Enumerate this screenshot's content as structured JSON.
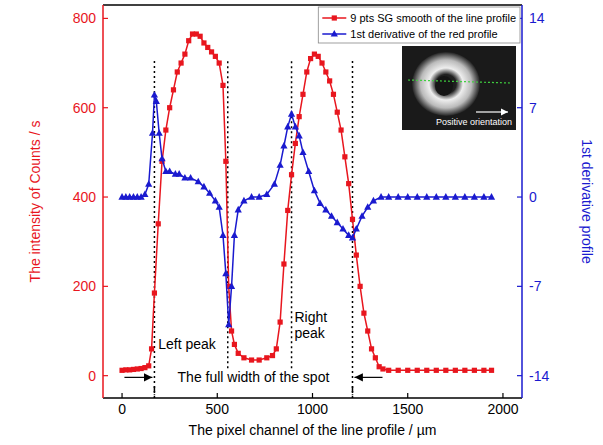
{
  "chart_data": {
    "type": "line",
    "xlabel": "The pixel channel of the line profile / µm",
    "ylabel": "The intensity of Counts / s",
    "y2label": "1st derivative profile",
    "xlim": [
      -100,
      2100
    ],
    "xticks": [
      0,
      500,
      1000,
      1500,
      2000
    ],
    "ylim": [
      -50,
      830
    ],
    "yticks": [
      0,
      200,
      400,
      600,
      800
    ],
    "y2lim": [
      -15.75,
      15.05
    ],
    "y2ticks": [
      -14,
      -7,
      0,
      7,
      14
    ],
    "legend": "top-right",
    "series": [
      {
        "name": "9 pts SG smooth of the line profile",
        "color": "#e8161e",
        "marker": "square",
        "line_style": "solid",
        "x": [
          0,
          20,
          40,
          60,
          80,
          100,
          120,
          140,
          155,
          170,
          190,
          210,
          230,
          250,
          270,
          290,
          310,
          330,
          350,
          370,
          390,
          410,
          430,
          450,
          470,
          490,
          510,
          530,
          545,
          560,
          575,
          590,
          610,
          640,
          680,
          720,
          760,
          790,
          810,
          830,
          850,
          870,
          890,
          910,
          930,
          950,
          970,
          990,
          1010,
          1030,
          1050,
          1070,
          1090,
          1110,
          1130,
          1150,
          1170,
          1190,
          1210,
          1230,
          1250,
          1270,
          1290,
          1310,
          1330,
          1350,
          1370,
          1400,
          1450,
          1500,
          1550,
          1600,
          1650,
          1700,
          1750,
          1800,
          1850,
          1900,
          1940
        ],
        "values": [
          12,
          13,
          13,
          14,
          15,
          16,
          18,
          22,
          60,
          185,
          340,
          480,
          550,
          600,
          640,
          680,
          700,
          720,
          750,
          765,
          765,
          760,
          745,
          735,
          725,
          715,
          700,
          650,
          480,
          200,
          100,
          70,
          50,
          40,
          35,
          35,
          40,
          45,
          60,
          120,
          250,
          370,
          450,
          520,
          580,
          630,
          680,
          710,
          720,
          715,
          700,
          680,
          660,
          630,
          590,
          550,
          490,
          430,
          350,
          270,
          200,
          140,
          100,
          60,
          40,
          20,
          15,
          12,
          12,
          12,
          12,
          12,
          12,
          12,
          12,
          12,
          12,
          12,
          12
        ]
      },
      {
        "name": "1st derivative of the red profile",
        "color": "#1a1acf",
        "marker": "triangle",
        "line_style": "solid",
        "axis": "y2",
        "x": [
          0,
          20,
          40,
          60,
          80,
          100,
          120,
          140,
          160,
          170,
          180,
          195,
          210,
          230,
          250,
          280,
          300,
          330,
          360,
          400,
          430,
          460,
          490,
          510,
          530,
          545,
          560,
          575,
          590,
          610,
          640,
          680,
          720,
          760,
          800,
          830,
          850,
          870,
          890,
          910,
          930,
          950,
          980,
          1010,
          1040,
          1070,
          1100,
          1130,
          1160,
          1190,
          1210,
          1230,
          1260,
          1290,
          1320,
          1360,
          1400,
          1450,
          1500,
          1550,
          1600,
          1650,
          1700,
          1750,
          1800,
          1850,
          1900,
          1940
        ],
        "values": [
          0,
          0,
          0,
          0,
          0,
          0,
          0.2,
          1,
          5,
          8,
          7.5,
          5,
          3,
          2,
          2,
          1.8,
          1.8,
          1.5,
          1.5,
          1.2,
          0.8,
          0.3,
          -0.3,
          -0.8,
          -3,
          -6,
          -10,
          -7,
          -3,
          -1,
          -0.3,
          0,
          0,
          0.2,
          1,
          2.5,
          4,
          5.5,
          6.5,
          5.5,
          4.8,
          3.5,
          2,
          0.5,
          -0.5,
          -1,
          -1.5,
          -2,
          -2.5,
          -3,
          -3.2,
          -2.5,
          -1.5,
          -0.8,
          -0.3,
          0,
          0,
          0,
          0,
          0,
          0,
          0,
          0,
          0,
          0,
          0,
          0,
          0
        ]
      }
    ],
    "vlines": [
      170,
      555,
      890,
      1210
    ],
    "annotations": [
      {
        "text": "Left peak",
        "x": 190,
        "y": 60
      },
      {
        "text": "Right peak",
        "x": 905,
        "y": 120
      },
      {
        "text": "The full width of the spot",
        "x": 690,
        "y": -15
      }
    ],
    "inset_text": "Positive orientation"
  }
}
